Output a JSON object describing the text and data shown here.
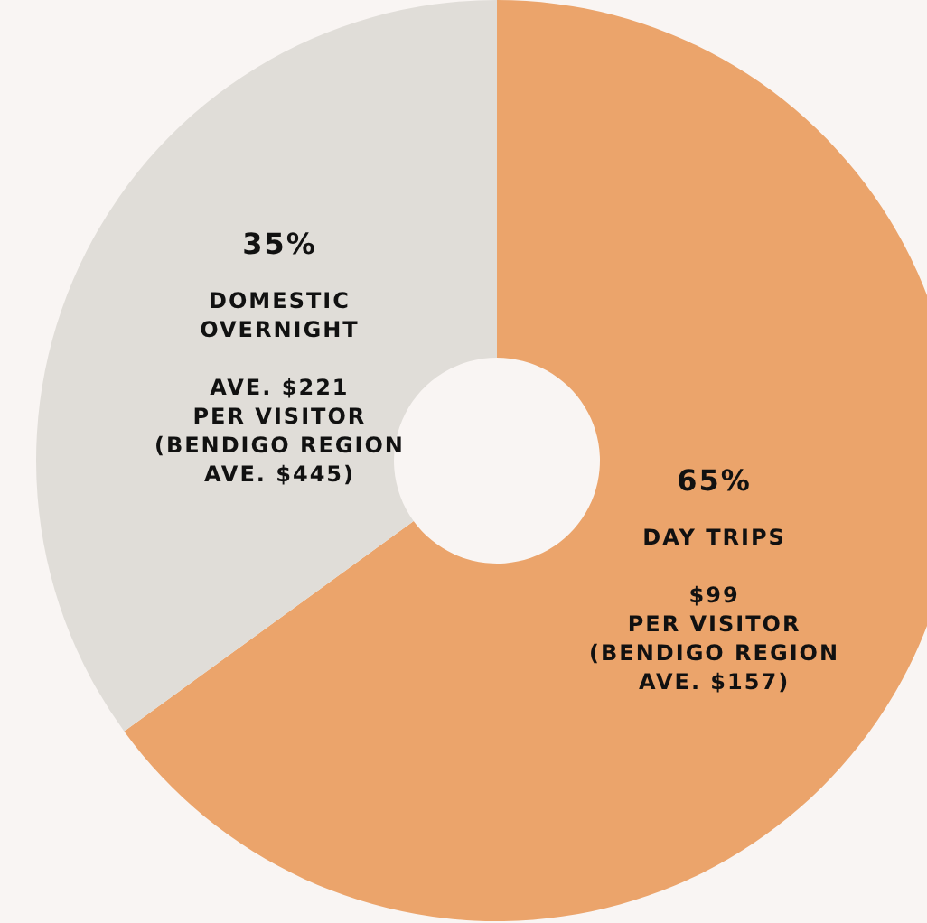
{
  "chart_data": {
    "type": "donut",
    "categories": [
      "DAY TRIPS",
      "DOMESTIC\nOVERNIGHT"
    ],
    "values": [
      65,
      35
    ],
    "colors": [
      "#eba46b",
      "#e0ddd8"
    ],
    "value_labels": [
      "65%",
      "35%"
    ],
    "annotations": [
      "$99\nPER VISITOR\n(BENDIGO REGION\nAVE. $157)",
      "AVE. $221\nPER VISITOR\n(BENDIGO REGION\nAVE. $445)"
    ]
  }
}
